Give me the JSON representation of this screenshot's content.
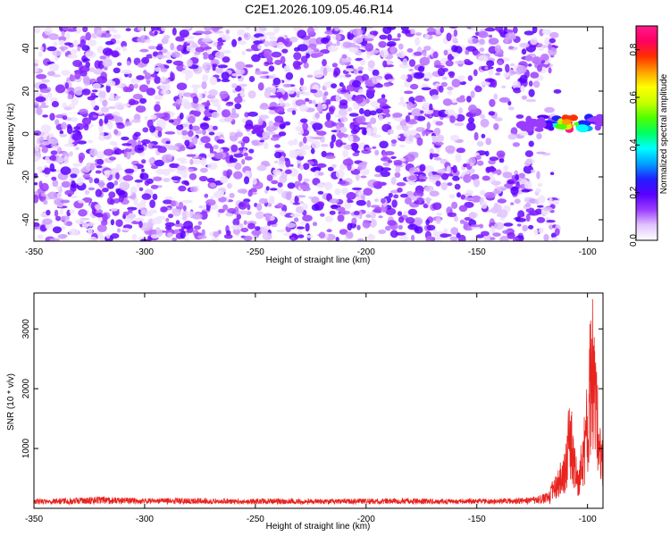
{
  "title": "C2E1.2026.109.05.46.R14",
  "chart_data": [
    {
      "type": "heatmap",
      "xlabel": "Height of straight line (km)",
      "ylabel": "Frequency (Hz)",
      "xlim": [
        -350,
        -93
      ],
      "ylim": [
        -50,
        50
      ],
      "xticks": [
        -350,
        -300,
        -250,
        -200,
        -150,
        -100
      ],
      "yticks": [
        -40,
        -20,
        0,
        20,
        40
      ],
      "colorbar": {
        "label": "Normalized spectral amplitude",
        "range": [
          0,
          0.9
        ],
        "ticks": [
          "0.0",
          "0.2",
          "0.4",
          "0.6",
          "0.8"
        ],
        "colors": [
          "#ffffff",
          "#e1c3ff",
          "#9a3cff",
          "#5800ff",
          "#2020ff",
          "#00a0ff",
          "#00ffff",
          "#00ff60",
          "#50ff00",
          "#c8ff00",
          "#ffff00",
          "#ffa000",
          "#ff3000",
          "#ff0060",
          "#ff1a8c"
        ]
      },
      "noise_extent_km": -113,
      "signal_track": {
        "x_start": -130,
        "x_end": -93,
        "frequency": 5,
        "peak_x": -108,
        "peak_value": 0.9
      }
    },
    {
      "type": "line",
      "xlabel": "Height of straight line (km)",
      "ylabel": "SNR (10 * v/v)",
      "xlim": [
        -350,
        -93
      ],
      "ylim": [
        0,
        3600
      ],
      "xticks": [
        -350,
        -300,
        -250,
        -200,
        -150,
        -100
      ],
      "yticks": [
        1000,
        2000,
        3000
      ],
      "grid": false,
      "series": [
        {
          "color": "#e8231f",
          "x": [
            -350,
            -330,
            -320,
            -300,
            -280,
            -260,
            -240,
            -220,
            -200,
            -180,
            -160,
            -140,
            -125,
            -118,
            -113,
            -110,
            -108,
            -106,
            -104,
            -102,
            -100,
            -98,
            -96,
            -94
          ],
          "y": [
            150,
            170,
            190,
            160,
            165,
            150,
            160,
            150,
            155,
            160,
            150,
            150,
            180,
            250,
            650,
            900,
            1900,
            1100,
            700,
            1300,
            2050,
            3600,
            2300,
            1100
          ]
        }
      ]
    }
  ]
}
